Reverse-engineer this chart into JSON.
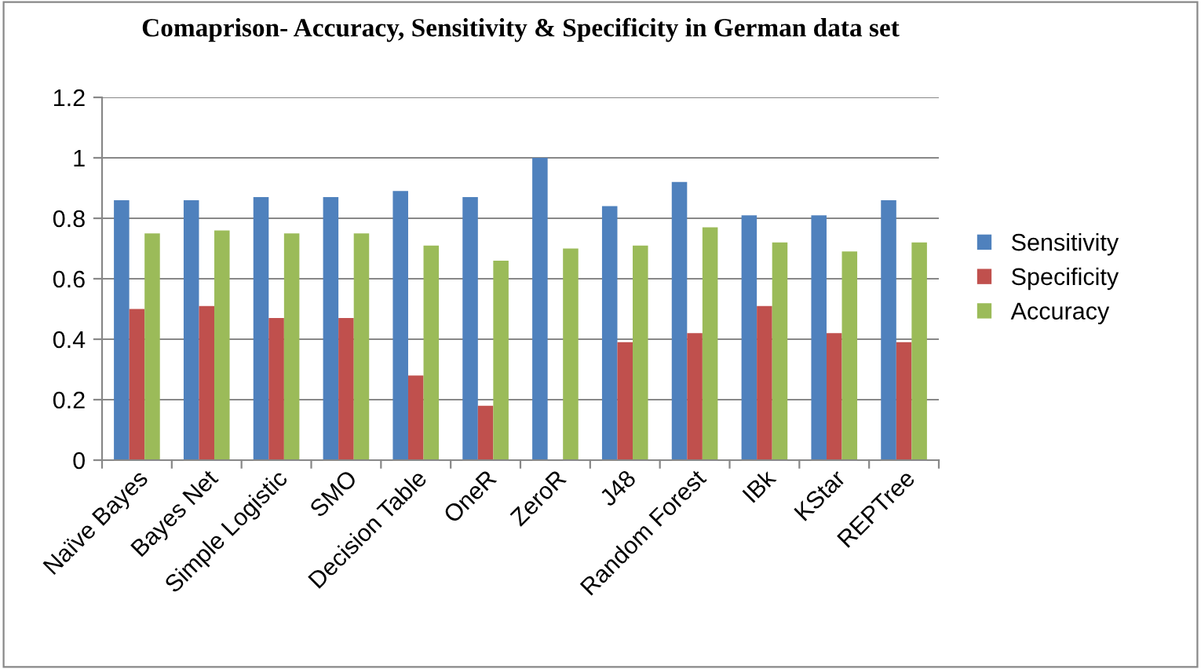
{
  "chart_data": {
    "type": "bar",
    "title": "Comaprison- Accuracy, Sensitivity & Specificity in German data set",
    "categories": [
      "Naïve Bayes",
      "Bayes Net",
      "Simple Logistic",
      "SMO",
      "Decision Table",
      "OneR",
      "ZeroR",
      "J48",
      "Random Forest",
      "IBk",
      "KStar",
      "REPTree"
    ],
    "series": [
      {
        "name": "Sensitivity",
        "color": "#4f81bd",
        "values": [
          0.86,
          0.86,
          0.87,
          0.87,
          0.89,
          0.87,
          1.0,
          0.84,
          0.92,
          0.81,
          0.81,
          0.86
        ]
      },
      {
        "name": "Specificity",
        "color": "#c0504d",
        "values": [
          0.5,
          0.51,
          0.47,
          0.47,
          0.28,
          0.18,
          0,
          0.39,
          0.42,
          0.51,
          0.42,
          0.39
        ]
      },
      {
        "name": "Accuracy",
        "color": "#9bbb59",
        "values": [
          0.75,
          0.76,
          0.75,
          0.75,
          0.71,
          0.66,
          0.7,
          0.71,
          0.77,
          0.72,
          0.69,
          0.72
        ]
      }
    ],
    "ylim": [
      0,
      1.2
    ],
    "yticks": [
      0,
      {
        "value": 0.2,
        "label": "0.2"
      },
      {
        "value": 0.4,
        "label": "0.4"
      },
      {
        "value": 0.6,
        "label": "0.6"
      },
      {
        "value": 0.8,
        "label": "0.8"
      },
      1,
      {
        "value": 1.2,
        "label": "1.2"
      }
    ],
    "grid": "y",
    "legend": "right"
  }
}
